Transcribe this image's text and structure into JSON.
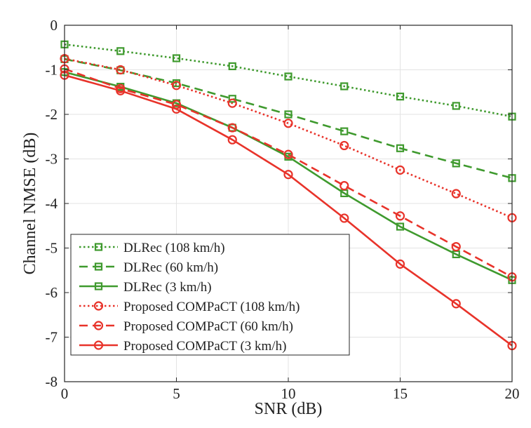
{
  "chart_data": {
    "type": "line",
    "title": "",
    "xlabel": "SNR (dB)",
    "ylabel": "Channel NMSE (dB)",
    "xlim": [
      0,
      20
    ],
    "ylim": [
      -8,
      0
    ],
    "xticks": [
      0,
      5,
      10,
      15,
      20
    ],
    "yticks": [
      0,
      -1,
      -2,
      -3,
      -4,
      -5,
      -6,
      -7,
      -8
    ],
    "grid": true,
    "legend_position": "bottom-left",
    "x": [
      0,
      2.5,
      5,
      7.5,
      10,
      12.5,
      15,
      17.5,
      20
    ],
    "series": [
      {
        "name": "DLRec (108 km/h)",
        "color": "#3f9a2e",
        "linestyle": "dotted",
        "marker": "square",
        "values": [
          -0.43,
          -0.58,
          -0.74,
          -0.92,
          -1.15,
          -1.37,
          -1.6,
          -1.81,
          -2.05
        ]
      },
      {
        "name": "DLRec (60 km/h)",
        "color": "#3f9a2e",
        "linestyle": "dashed",
        "marker": "square",
        "values": [
          -0.76,
          -1.01,
          -1.3,
          -1.65,
          -2.0,
          -2.38,
          -2.76,
          -3.1,
          -3.43
        ]
      },
      {
        "name": "DLRec (3 km/h)",
        "color": "#3f9a2e",
        "linestyle": "solid",
        "marker": "square",
        "values": [
          -1.05,
          -1.38,
          -1.75,
          -2.3,
          -2.95,
          -3.77,
          -4.52,
          -5.14,
          -5.72
        ]
      },
      {
        "name": "Proposed COMPaCT (108 km/h)",
        "color": "#e8332a",
        "linestyle": "dotted",
        "marker": "circle",
        "values": [
          -0.75,
          -1.0,
          -1.35,
          -1.75,
          -2.2,
          -2.7,
          -3.25,
          -3.78,
          -4.32
        ]
      },
      {
        "name": "Proposed COMPaCT (60 km/h)",
        "color": "#e8332a",
        "linestyle": "dashed",
        "marker": "circle",
        "values": [
          -0.98,
          -1.42,
          -1.78,
          -2.3,
          -2.9,
          -3.6,
          -4.28,
          -4.97,
          -5.65
        ]
      },
      {
        "name": "Proposed COMPaCT (3 km/h)",
        "color": "#e8332a",
        "linestyle": "solid",
        "marker": "circle",
        "values": [
          -1.12,
          -1.47,
          -1.88,
          -2.57,
          -3.35,
          -4.33,
          -5.36,
          -6.25,
          -7.19
        ]
      }
    ]
  }
}
